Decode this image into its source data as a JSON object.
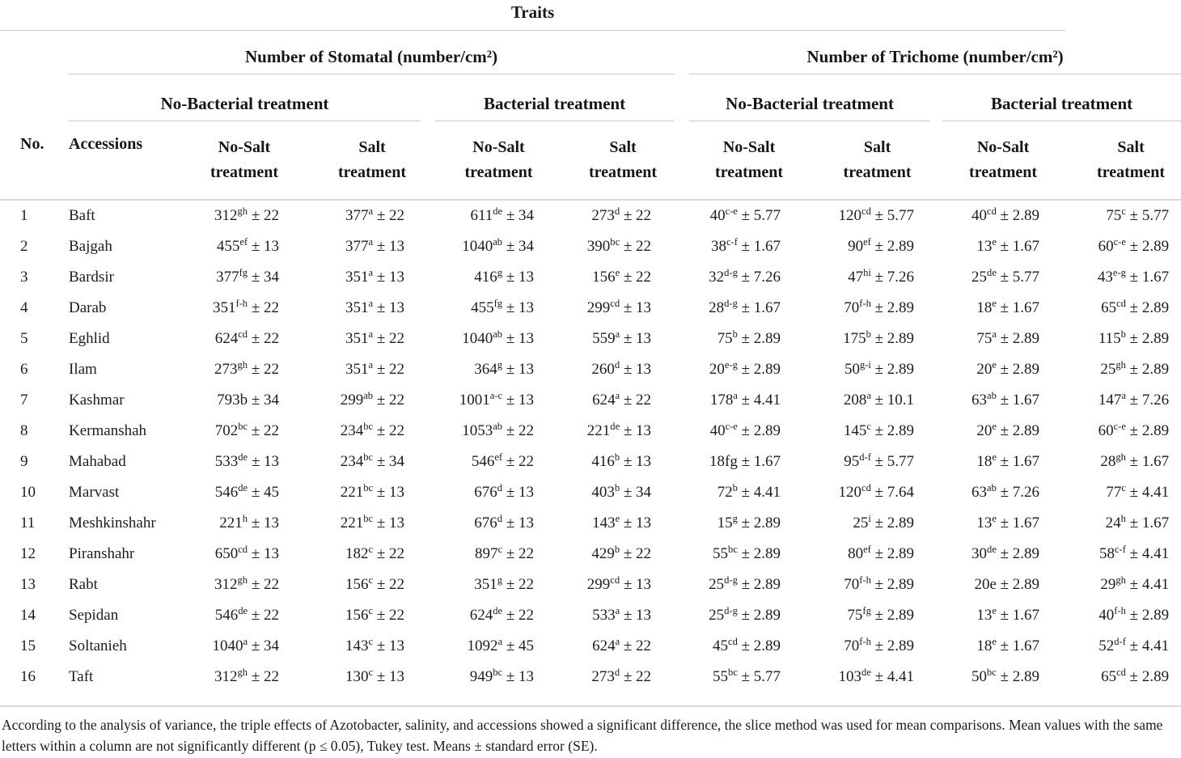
{
  "title": "Traits",
  "header": {
    "traits": [
      "Number of Stomatal (number/cm²)",
      "Number of Trichome (number/cm²)"
    ],
    "treatments": [
      "No-Bacterial treatment",
      "Bacterial treatment",
      "No-Bacterial treatment",
      "Bacterial treatment"
    ],
    "no_label": "No.",
    "accessions_label": "Accessions",
    "columns": [
      "No-Salt treatment",
      "Salt treatment",
      "No-Salt treatment",
      "Salt treatment",
      "No-Salt treatment",
      "Salt treatment",
      "No-Salt treatment",
      "Salt treatment"
    ]
  },
  "plus_minus": "±",
  "rows": [
    {
      "no": "1",
      "accession": "Baft",
      "values": [
        {
          "m": "312",
          "s": "gh",
          "e": "22"
        },
        {
          "m": "377",
          "s": "a",
          "e": "22"
        },
        {
          "m": "611",
          "s": "de",
          "e": "34"
        },
        {
          "m": "273",
          "s": "d",
          "e": "22"
        },
        {
          "m": "40",
          "s": "c-e",
          "e": "5.77"
        },
        {
          "m": "120",
          "s": "cd",
          "e": "5.77"
        },
        {
          "m": "40",
          "s": "cd",
          "e": "2.89"
        },
        {
          "m": "75",
          "s": "c",
          "e": "5.77"
        }
      ]
    },
    {
      "no": "2",
      "accession": "Bajgah",
      "values": [
        {
          "m": "455",
          "s": "ef",
          "e": "13"
        },
        {
          "m": "377",
          "s": "a",
          "e": "13"
        },
        {
          "m": "1040",
          "s": "ab",
          "e": "34"
        },
        {
          "m": "390",
          "s": "bc",
          "e": "22"
        },
        {
          "m": "38",
          "s": "c-f",
          "e": "1.67"
        },
        {
          "m": "90",
          "s": "ef",
          "e": "2.89"
        },
        {
          "m": "13",
          "s": "e",
          "e": "1.67"
        },
        {
          "m": "60",
          "s": "c-e",
          "e": "2.89"
        }
      ]
    },
    {
      "no": "3",
      "accession": "Bardsir",
      "values": [
        {
          "m": "377",
          "s": "fg",
          "e": "34"
        },
        {
          "m": "351",
          "s": "a",
          "e": "13"
        },
        {
          "m": "416",
          "s": "g",
          "e": "13"
        },
        {
          "m": "156",
          "s": "e",
          "e": "22"
        },
        {
          "m": "32",
          "s": "d-g",
          "e": "7.26"
        },
        {
          "m": "47",
          "s": "hi",
          "e": "7.26"
        },
        {
          "m": "25",
          "s": "de",
          "e": "5.77"
        },
        {
          "m": "43",
          "s": "e-g",
          "e": "1.67"
        }
      ]
    },
    {
      "no": "4",
      "accession": "Darab",
      "values": [
        {
          "m": "351",
          "s": "f-h",
          "e": "22"
        },
        {
          "m": "351",
          "s": "a",
          "e": "13"
        },
        {
          "m": "455",
          "s": "fg",
          "e": "13"
        },
        {
          "m": "299",
          "s": "cd",
          "e": "13"
        },
        {
          "m": "28",
          "s": "d-g",
          "e": "1.67"
        },
        {
          "m": "70",
          "s": "f-h",
          "e": "2.89"
        },
        {
          "m": "18",
          "s": "e",
          "e": "1.67"
        },
        {
          "m": "65",
          "s": "cd",
          "e": "2.89"
        }
      ]
    },
    {
      "no": "5",
      "accession": "Eghlid",
      "values": [
        {
          "m": "624",
          "s": "cd",
          "e": "22"
        },
        {
          "m": "351",
          "s": "a",
          "e": "22"
        },
        {
          "m": "1040",
          "s": "ab",
          "e": "13"
        },
        {
          "m": "559",
          "s": "a",
          "e": "13"
        },
        {
          "m": "75",
          "s": "b",
          "e": "2.89"
        },
        {
          "m": "175",
          "s": "b",
          "e": "2.89"
        },
        {
          "m": "75",
          "s": "a",
          "e": "2.89"
        },
        {
          "m": "115",
          "s": "b",
          "e": "2.89"
        }
      ]
    },
    {
      "no": "6",
      "accession": "Ilam",
      "values": [
        {
          "m": "273",
          "s": "gh",
          "e": "22"
        },
        {
          "m": "351",
          "s": "a",
          "e": "22"
        },
        {
          "m": "364",
          "s": "g",
          "e": "13"
        },
        {
          "m": "260",
          "s": "d",
          "e": "13"
        },
        {
          "m": "20",
          "s": "e-g",
          "e": "2.89"
        },
        {
          "m": "50",
          "s": "g-i",
          "e": "2.89"
        },
        {
          "m": "20",
          "s": "e",
          "e": "2.89"
        },
        {
          "m": "25",
          "s": "gh",
          "e": "2.89"
        }
      ]
    },
    {
      "no": "7",
      "accession": "Kashmar",
      "values": [
        {
          "m": "793b",
          "s": "",
          "e": "34"
        },
        {
          "m": "299",
          "s": "ab",
          "e": "22"
        },
        {
          "m": "1001",
          "s": "a-c",
          "e": "13"
        },
        {
          "m": "624",
          "s": "a",
          "e": "22"
        },
        {
          "m": "178",
          "s": "a",
          "e": "4.41"
        },
        {
          "m": "208",
          "s": "a",
          "e": "10.1"
        },
        {
          "m": "63",
          "s": "ab",
          "e": "1.67"
        },
        {
          "m": "147",
          "s": "a",
          "e": "7.26"
        }
      ]
    },
    {
      "no": "8",
      "accession": "Kermanshah",
      "values": [
        {
          "m": "702",
          "s": "bc",
          "e": "22"
        },
        {
          "m": "234",
          "s": "bc",
          "e": "22"
        },
        {
          "m": "1053",
          "s": "ab",
          "e": "22"
        },
        {
          "m": "221",
          "s": "de",
          "e": "13"
        },
        {
          "m": "40",
          "s": "c-e",
          "e": "2.89"
        },
        {
          "m": "145",
          "s": "c",
          "e": "2.89"
        },
        {
          "m": "20",
          "s": "e",
          "e": "2.89"
        },
        {
          "m": "60",
          "s": "c-e",
          "e": "2.89"
        }
      ]
    },
    {
      "no": "9",
      "accession": "Mahabad",
      "values": [
        {
          "m": "533",
          "s": "de",
          "e": "13"
        },
        {
          "m": "234",
          "s": "bc",
          "e": "34"
        },
        {
          "m": "546",
          "s": "ef",
          "e": "22"
        },
        {
          "m": "416",
          "s": "b",
          "e": "13"
        },
        {
          "m": "18fg",
          "s": "",
          "e": "1.67"
        },
        {
          "m": "95",
          "s": "d-f",
          "e": "5.77"
        },
        {
          "m": "18",
          "s": "e",
          "e": "1.67"
        },
        {
          "m": "28",
          "s": "gh",
          "e": "1.67"
        }
      ]
    },
    {
      "no": "10",
      "accession": "Marvast",
      "values": [
        {
          "m": "546",
          "s": "de",
          "e": "45"
        },
        {
          "m": "221",
          "s": "bc",
          "e": "13"
        },
        {
          "m": "676",
          "s": "d",
          "e": "13"
        },
        {
          "m": "403",
          "s": "b",
          "e": "34"
        },
        {
          "m": "72",
          "s": "b",
          "e": "4.41"
        },
        {
          "m": "120",
          "s": "cd",
          "e": "7.64"
        },
        {
          "m": "63",
          "s": "ab",
          "e": "7.26"
        },
        {
          "m": "77",
          "s": "c",
          "e": "4.41"
        }
      ]
    },
    {
      "no": "11",
      "accession": "Meshkinshahr",
      "values": [
        {
          "m": "221",
          "s": "h",
          "e": "13"
        },
        {
          "m": "221",
          "s": "bc",
          "e": "13"
        },
        {
          "m": "676",
          "s": "d",
          "e": "13"
        },
        {
          "m": "143",
          "s": "e",
          "e": "13"
        },
        {
          "m": "15",
          "s": "g",
          "e": "2.89"
        },
        {
          "m": "25",
          "s": "i",
          "e": "2.89"
        },
        {
          "m": "13",
          "s": "e",
          "e": "1.67"
        },
        {
          "m": "24",
          "s": "h",
          "e": "1.67"
        }
      ]
    },
    {
      "no": "12",
      "accession": "Piranshahr",
      "values": [
        {
          "m": "650",
          "s": "cd",
          "e": "13"
        },
        {
          "m": "182",
          "s": "c",
          "e": "22"
        },
        {
          "m": "897",
          "s": "c",
          "e": "22"
        },
        {
          "m": "429",
          "s": "b",
          "e": "22"
        },
        {
          "m": "55",
          "s": "bc",
          "e": "2.89"
        },
        {
          "m": "80",
          "s": "ef",
          "e": "2.89"
        },
        {
          "m": "30",
          "s": "de",
          "e": "2.89"
        },
        {
          "m": "58",
          "s": "c-f",
          "e": "4.41"
        }
      ]
    },
    {
      "no": "13",
      "accession": "Rabt",
      "values": [
        {
          "m": "312",
          "s": "gh",
          "e": "22"
        },
        {
          "m": "156",
          "s": "c",
          "e": "22"
        },
        {
          "m": "351",
          "s": "g",
          "e": "22"
        },
        {
          "m": "299",
          "s": "cd",
          "e": "13"
        },
        {
          "m": "25",
          "s": "d-g",
          "e": "2.89"
        },
        {
          "m": "70",
          "s": "f-h",
          "e": "2.89"
        },
        {
          "m": "20e",
          "s": "",
          "e": "2.89"
        },
        {
          "m": "29",
          "s": "gh",
          "e": "4.41"
        }
      ]
    },
    {
      "no": "14",
      "accession": "Sepidan",
      "values": [
        {
          "m": "546",
          "s": "de",
          "e": "22"
        },
        {
          "m": "156",
          "s": "c",
          "e": "22"
        },
        {
          "m": "624",
          "s": "de",
          "e": "22"
        },
        {
          "m": "533",
          "s": "a",
          "e": "13"
        },
        {
          "m": "25",
          "s": "d-g",
          "e": "2.89"
        },
        {
          "m": "75",
          "s": "fg",
          "e": "2.89"
        },
        {
          "m": "13",
          "s": "e",
          "e": "1.67"
        },
        {
          "m": "40",
          "s": "f-h",
          "e": "2.89"
        }
      ]
    },
    {
      "no": "15",
      "accession": "Soltanieh",
      "values": [
        {
          "m": "1040",
          "s": "a",
          "e": "34"
        },
        {
          "m": "143",
          "s": "c",
          "e": "13"
        },
        {
          "m": "1092",
          "s": "a",
          "e": "45"
        },
        {
          "m": "624",
          "s": "a",
          "e": "22"
        },
        {
          "m": "45",
          "s": "cd",
          "e": "2.89"
        },
        {
          "m": "70",
          "s": "f-h",
          "e": "2.89"
        },
        {
          "m": "18",
          "s": "e",
          "e": "1.67"
        },
        {
          "m": "52",
          "s": "d-f",
          "e": "4.41"
        }
      ]
    },
    {
      "no": "16",
      "accession": "Taft",
      "values": [
        {
          "m": "312",
          "s": "gh",
          "e": "22"
        },
        {
          "m": "130",
          "s": "c",
          "e": "13"
        },
        {
          "m": "949",
          "s": "bc",
          "e": "13"
        },
        {
          "m": "273",
          "s": "d",
          "e": "22"
        },
        {
          "m": "55",
          "s": "bc",
          "e": "5.77"
        },
        {
          "m": "103",
          "s": "de",
          "e": "4.41"
        },
        {
          "m": "50",
          "s": "bc",
          "e": "2.89"
        },
        {
          "m": "65",
          "s": "cd",
          "e": "2.89"
        }
      ]
    }
  ],
  "footnote": "According to the analysis of variance, the triple effects of Azotobacter, salinity, and accessions showed a significant difference, the slice method was used for mean comparisons. Mean values with the same letters within a column are not significantly different (p ≤ 0.05), Tukey test. Means ± standard error (SE)."
}
